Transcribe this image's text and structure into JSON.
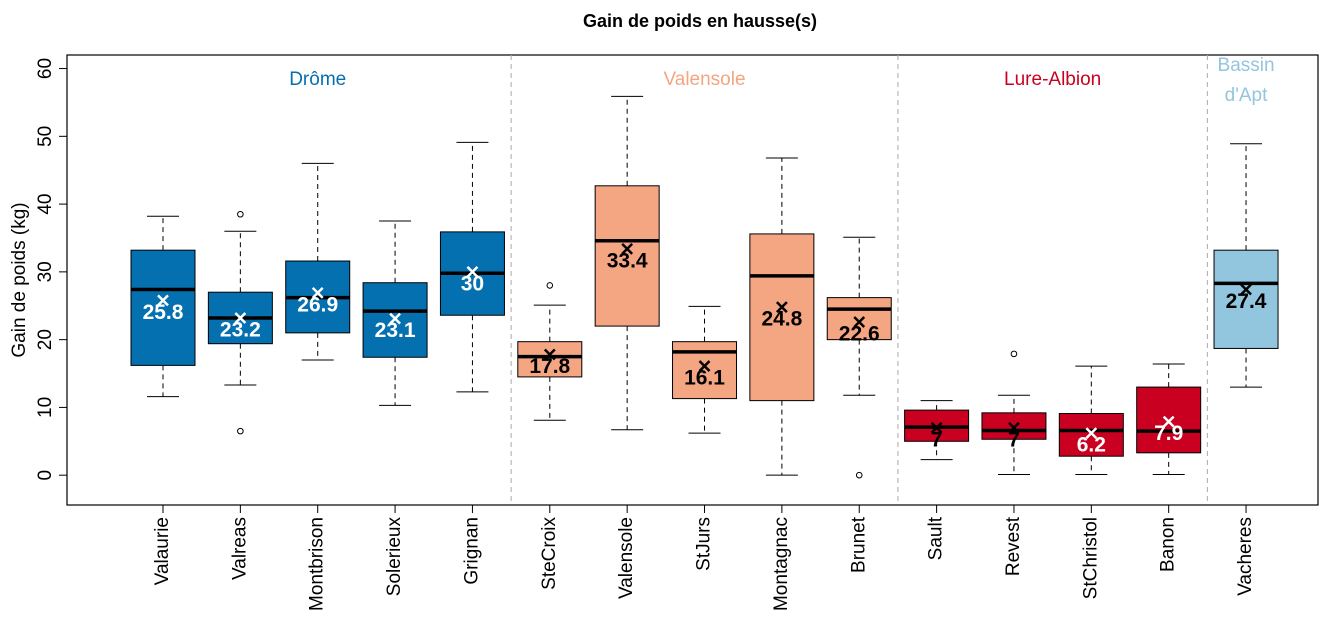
{
  "chart_data": {
    "type": "boxplot",
    "title": "Gain de poids en hausse(s)",
    "y_label": "Gain de poids (kg)",
    "ylim": [
      -4.4,
      62
    ],
    "yticks": [
      0,
      10,
      20,
      30,
      40,
      50,
      60
    ],
    "groups": [
      {
        "label": [
          "Drôme"
        ],
        "color": "#0570b0",
        "boxes": [
          {
            "category": "Valaurie",
            "whislo": 11.6,
            "q1": 16.2,
            "med": 27.4,
            "q3": 33.2,
            "whishi": 38.2,
            "mean": 25.8,
            "outliers": [],
            "text_color": "#ffffff"
          },
          {
            "category": "Valreas",
            "whislo": 13.3,
            "q1": 19.4,
            "med": 23.2,
            "q3": 27,
            "whishi": 36,
            "mean": 23.2,
            "outliers": [
              38.5,
              6.5
            ],
            "text_color": "#ffffff"
          },
          {
            "category": "Montbrison",
            "whislo": 17,
            "q1": 21,
            "med": 26.2,
            "q3": 31.6,
            "whishi": 46,
            "mean": 26.9,
            "outliers": [],
            "text_color": "#ffffff"
          },
          {
            "category": "Solerieux",
            "whislo": 10.3,
            "q1": 17.4,
            "med": 24.2,
            "q3": 28.4,
            "whishi": 37.5,
            "mean": 23.1,
            "outliers": [],
            "text_color": "#ffffff"
          },
          {
            "category": "Grignan",
            "whislo": 12.3,
            "q1": 23.6,
            "med": 29.8,
            "q3": 35.9,
            "whishi": 49.1,
            "mean": 30,
            "outliers": [],
            "text_color": "#ffffff"
          }
        ]
      },
      {
        "label": [
          "Valensole"
        ],
        "color": "#f4a582",
        "boxes": [
          {
            "category": "SteCroix",
            "whislo": 8.1,
            "q1": 14.5,
            "med": 17.5,
            "q3": 19.7,
            "whishi": 25.1,
            "mean": 17.8,
            "outliers": [
              28
            ],
            "text_color": "#000000"
          },
          {
            "category": "Valensole",
            "whislo": 6.7,
            "q1": 22,
            "med": 34.6,
            "q3": 42.7,
            "whishi": 55.9,
            "mean": 33.4,
            "outliers": [],
            "text_color": "#000000"
          },
          {
            "category": "StJurs",
            "whislo": 6.2,
            "q1": 11.3,
            "med": 18.2,
            "q3": 19.7,
            "whishi": 24.9,
            "mean": 16.1,
            "outliers": [],
            "text_color": "#000000"
          },
          {
            "category": "Montagnac",
            "whislo": 0,
            "q1": 11,
            "med": 29.4,
            "q3": 35.6,
            "whishi": 46.8,
            "mean": 24.8,
            "outliers": [],
            "text_color": "#000000"
          },
          {
            "category": "Brunet",
            "whislo": 11.8,
            "q1": 20,
            "med": 24.5,
            "q3": 26.2,
            "whishi": 35.1,
            "mean": 22.6,
            "outliers": [
              0
            ],
            "text_color": "#000000"
          }
        ]
      },
      {
        "label": [
          "Lure-Albion"
        ],
        "color": "#ca0020",
        "boxes": [
          {
            "category": "Sault",
            "whislo": 2.3,
            "q1": 5,
            "med": 7.1,
            "q3": 9.6,
            "whishi": 11,
            "mean": 7,
            "outliers": [],
            "text_color": "#000000"
          },
          {
            "category": "Revest",
            "whislo": 0.1,
            "q1": 5.3,
            "med": 6.6,
            "q3": 9.2,
            "whishi": 11.8,
            "mean": 7,
            "outliers": [
              17.9
            ],
            "text_color": "#000000"
          },
          {
            "category": "StChristol",
            "whislo": 0.1,
            "q1": 2.8,
            "med": 6.6,
            "q3": 9.1,
            "whishi": 16.1,
            "mean": 6.2,
            "outliers": [],
            "text_color": "#ffffff"
          },
          {
            "category": "Banon",
            "whislo": 0.1,
            "q1": 3.3,
            "med": 6.5,
            "q3": 13,
            "whishi": 16.4,
            "mean": 7.9,
            "outliers": [],
            "text_color": "#ffffff"
          }
        ]
      },
      {
        "label": [
          "Bassin",
          "d'Apt"
        ],
        "color": "#92c5de",
        "boxes": [
          {
            "category": "Vacheres",
            "whislo": 13,
            "q1": 18.7,
            "med": 28.3,
            "q3": 33.2,
            "whishi": 48.9,
            "mean": 27.4,
            "outliers": [],
            "text_color": "#000000"
          }
        ]
      }
    ]
  }
}
